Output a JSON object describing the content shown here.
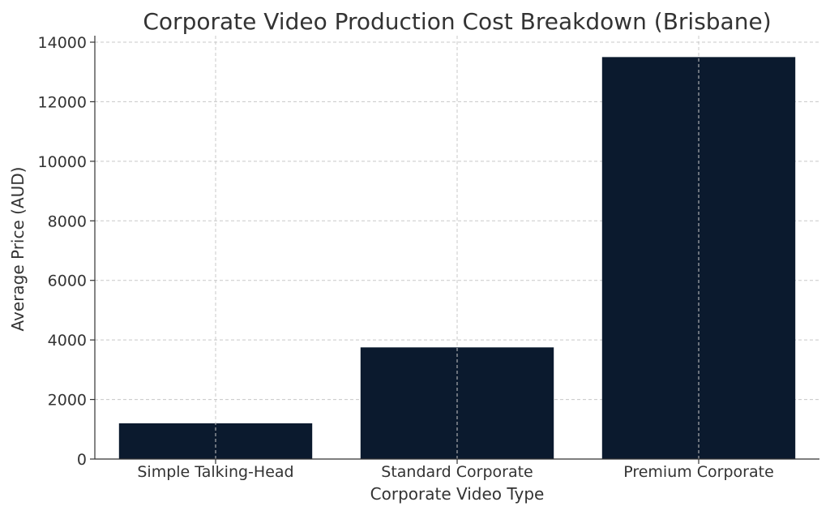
{
  "chart_data": {
    "type": "bar",
    "title": "Corporate Video Production Cost Breakdown (Brisbane)",
    "xlabel": "Corporate Video Type",
    "ylabel": "Average Price (AUD)",
    "categories": [
      "Simple Talking-Head",
      "Standard Corporate",
      "Premium Corporate"
    ],
    "values": [
      1200,
      3750,
      13500
    ],
    "ylim": [
      0,
      14000
    ],
    "yticks": [
      0,
      2000,
      4000,
      6000,
      8000,
      10000,
      12000,
      14000
    ],
    "grid": true,
    "bar_color": "#0b1a2e",
    "grid_color": "#c8c8c8",
    "text_color": "#333333"
  }
}
